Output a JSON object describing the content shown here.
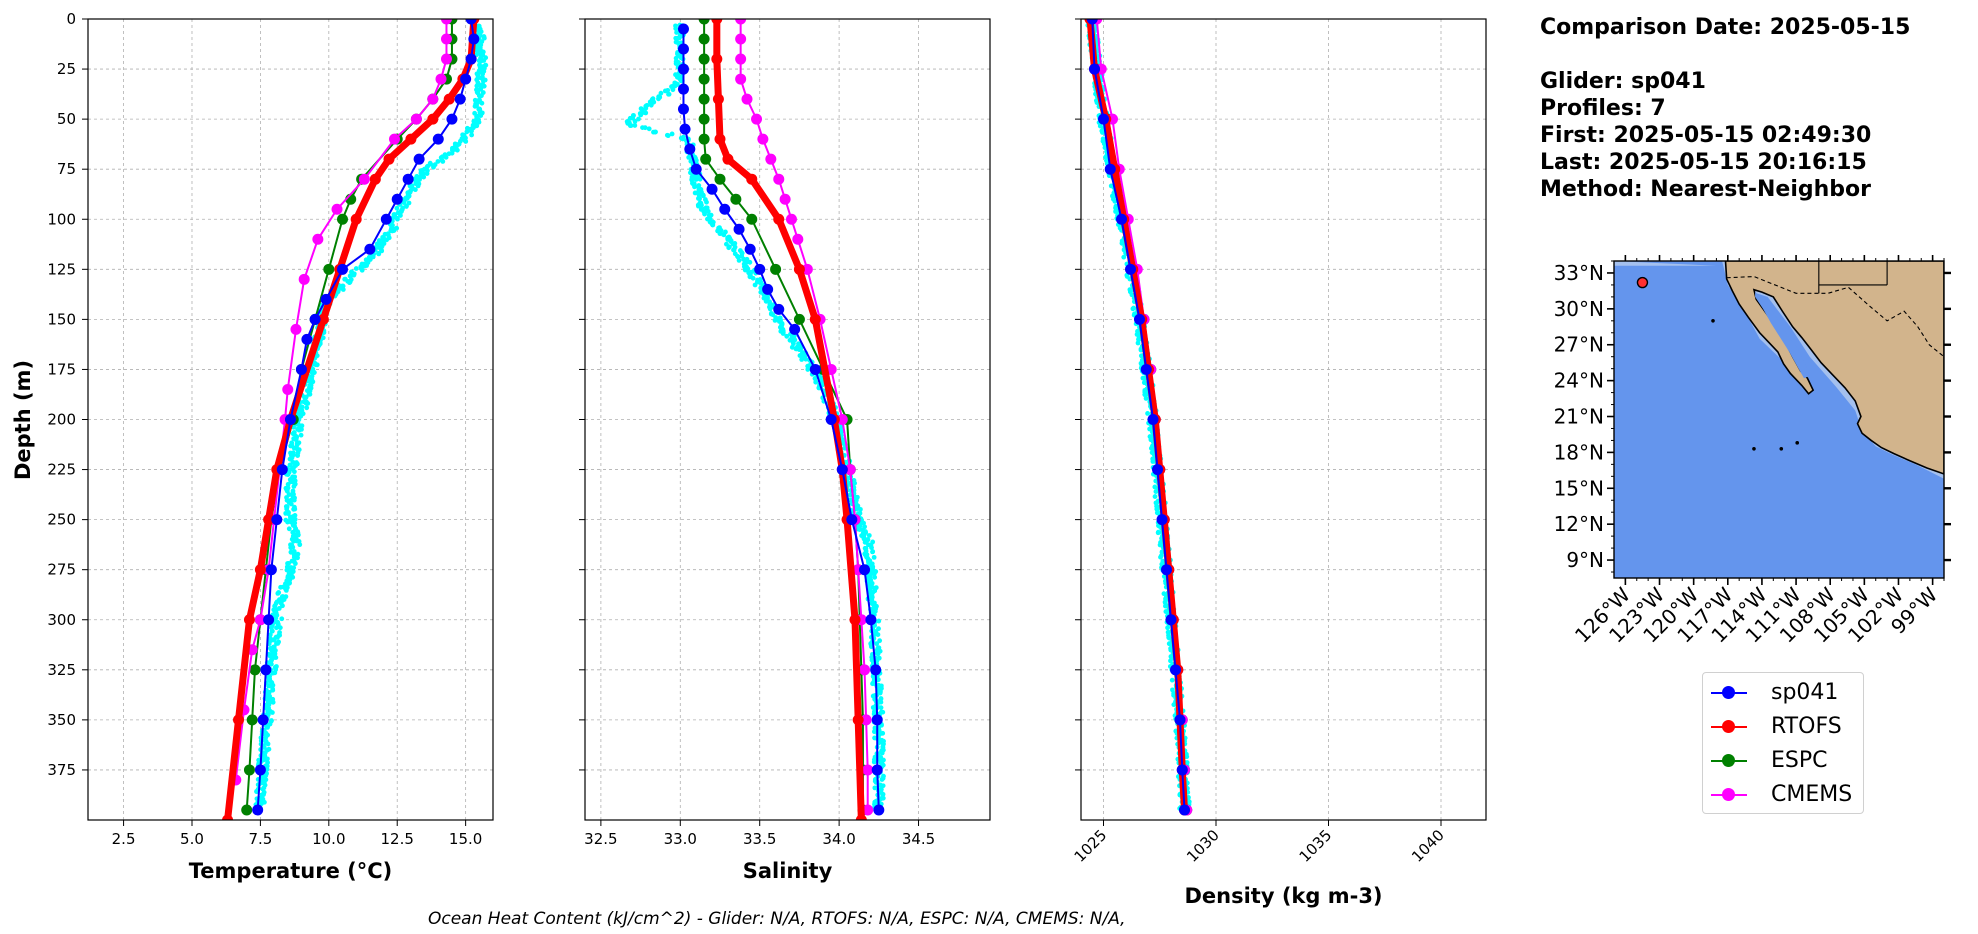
{
  "info": {
    "comparison_date": "Comparison Date: 2025-05-15",
    "glider": "Glider: sp041",
    "profiles": "Profiles: 7",
    "first": "First: 2025-05-15 02:49:30",
    "last": "Last: 2025-05-15 20:16:15",
    "method": "Method: Nearest-Neighbor"
  },
  "footer": "Ocean Heat Content (kJ/cm^2) - Glider: N/A,  RTOFS: N/A,  ESPC: N/A,  CMEMS: N/A,",
  "colors": {
    "sp041": "#0000ff",
    "RTOFS": "#ff0000",
    "ESPC": "#008000",
    "CMEMS": "#ff00ff",
    "raw": "#00ffff",
    "ocean": "#6495ed",
    "land": "#d2b48c",
    "shelf": "#a4c0ee"
  },
  "legend": [
    {
      "label": "sp041",
      "color": "#0000ff"
    },
    {
      "label": "RTOFS",
      "color": "#ff0000"
    },
    {
      "label": "ESPC",
      "color": "#008000"
    },
    {
      "label": "CMEMS",
      "color": "#ff00ff"
    }
  ],
  "map": {
    "lat_labels": [
      "33°N",
      "30°N",
      "27°N",
      "24°N",
      "21°N",
      "18°N",
      "15°N",
      "12°N",
      "9°N"
    ],
    "lon_labels": [
      "126°W",
      "123°W",
      "120°W",
      "117°W",
      "114°W",
      "111°W",
      "108°W",
      "105°W",
      "102°W",
      "99°W"
    ],
    "glider_position": {
      "lat": 32.2,
      "lon": -124.5
    },
    "lat_range": [
      7.5,
      34.0
    ],
    "lon_range": [
      -127.0,
      -98.0
    ]
  },
  "chart_data": [
    {
      "type": "line",
      "xlabel": "Temperature (°C)",
      "ylabel": "Depth (m)",
      "xlim": [
        1.2,
        16.0
      ],
      "ylim": [
        400,
        0
      ],
      "xticks": [
        "2.5",
        "5.0",
        "7.5",
        "10.0",
        "12.5",
        "15.0"
      ],
      "yticks": [
        "0",
        "25",
        "50",
        "75",
        "100",
        "125",
        "150",
        "175",
        "200",
        "225",
        "250",
        "275",
        "300",
        "325",
        "350",
        "375"
      ],
      "grid": true,
      "series": [
        {
          "name": "sp041",
          "depth": [
            0,
            10,
            20,
            30,
            40,
            50,
            60,
            70,
            80,
            90,
            100,
            115,
            125,
            140,
            150,
            160,
            175,
            200,
            225,
            250,
            275,
            300,
            325,
            350,
            375,
            395
          ],
          "values": [
            15.2,
            15.3,
            15.2,
            15.0,
            14.8,
            14.5,
            14.0,
            13.3,
            12.9,
            12.5,
            12.1,
            11.5,
            10.5,
            9.9,
            9.5,
            9.2,
            9.0,
            8.6,
            8.3,
            8.1,
            7.9,
            7.8,
            7.7,
            7.6,
            7.5,
            7.4
          ]
        },
        {
          "name": "RTOFS",
          "depth": [
            0,
            20,
            30,
            40,
            50,
            60,
            70,
            80,
            100,
            125,
            150,
            200,
            225,
            250,
            275,
            300,
            350,
            400
          ],
          "values": [
            15.3,
            15.2,
            14.9,
            14.4,
            13.8,
            13.0,
            12.2,
            11.7,
            11.0,
            10.4,
            9.8,
            8.6,
            8.1,
            7.8,
            7.5,
            7.1,
            6.7,
            6.3
          ]
        },
        {
          "name": "ESPC",
          "depth": [
            0,
            10,
            20,
            30,
            40,
            50,
            60,
            80,
            90,
            100,
            125,
            150,
            175,
            200,
            225,
            250,
            275,
            300,
            325,
            350,
            375,
            395
          ],
          "values": [
            14.5,
            14.5,
            14.5,
            14.3,
            13.8,
            13.2,
            12.5,
            11.2,
            10.8,
            10.5,
            10.0,
            9.5,
            9.0,
            8.7,
            8.2,
            7.9,
            7.7,
            7.5,
            7.3,
            7.2,
            7.1,
            7.0
          ]
        },
        {
          "name": "CMEMS",
          "depth": [
            0,
            10,
            20,
            30,
            40,
            50,
            60,
            80,
            95,
            110,
            130,
            155,
            185,
            200,
            225,
            250,
            275,
            300,
            315,
            345,
            380
          ],
          "values": [
            14.3,
            14.3,
            14.3,
            14.1,
            13.8,
            13.2,
            12.4,
            11.3,
            10.3,
            9.6,
            9.1,
            8.8,
            8.5,
            8.4,
            8.2,
            8.0,
            7.8,
            7.5,
            7.2,
            6.9,
            6.6
          ]
        }
      ],
      "raw_profile": {
        "name": "sp041 raw",
        "depth": [
          5,
          25,
          45,
          55,
          65,
          75,
          90,
          105,
          120,
          140,
          160,
          180,
          200,
          230,
          250,
          260,
          275,
          290,
          310,
          340,
          370,
          390
        ],
        "values": [
          15.5,
          15.6,
          15.5,
          15.2,
          14.6,
          13.5,
          12.8,
          12.3,
          11.5,
          9.9,
          9.6,
          9.3,
          8.9,
          8.6,
          8.6,
          8.8,
          8.6,
          8.2,
          8.0,
          7.8,
          7.6,
          7.5
        ]
      }
    },
    {
      "type": "line",
      "xlabel": "Salinity",
      "xlim": [
        32.4,
        34.95
      ],
      "ylim": [
        400,
        0
      ],
      "xticks": [
        "32.5",
        "33.0",
        "33.5",
        "34.0",
        "34.5"
      ],
      "grid": true,
      "series": [
        {
          "name": "sp041",
          "depth": [
            5,
            15,
            25,
            35,
            45,
            55,
            65,
            75,
            85,
            95,
            105,
            115,
            125,
            135,
            145,
            155,
            175,
            200,
            225,
            250,
            275,
            300,
            325,
            350,
            375,
            395
          ],
          "values": [
            33.02,
            33.02,
            33.02,
            33.02,
            33.02,
            33.03,
            33.06,
            33.1,
            33.2,
            33.28,
            33.37,
            33.44,
            33.5,
            33.55,
            33.62,
            33.72,
            33.85,
            33.95,
            34.02,
            34.08,
            34.16,
            34.2,
            34.23,
            34.24,
            34.24,
            34.25
          ]
        },
        {
          "name": "RTOFS",
          "depth": [
            0,
            20,
            40,
            60,
            70,
            80,
            100,
            125,
            150,
            200,
            225,
            250,
            300,
            350,
            400
          ],
          "values": [
            33.23,
            33.23,
            33.24,
            33.25,
            33.3,
            33.45,
            33.62,
            33.75,
            33.85,
            33.97,
            34.02,
            34.05,
            34.1,
            34.12,
            34.14
          ]
        },
        {
          "name": "ESPC",
          "depth": [
            0,
            10,
            20,
            30,
            40,
            50,
            60,
            70,
            80,
            90,
            100,
            125,
            150,
            175,
            200,
            225,
            250,
            275,
            300,
            325,
            350,
            375,
            395
          ],
          "values": [
            33.15,
            33.15,
            33.15,
            33.15,
            33.15,
            33.15,
            33.15,
            33.16,
            33.25,
            33.35,
            33.45,
            33.6,
            33.75,
            33.9,
            34.05,
            34.07,
            34.1,
            34.12,
            34.13,
            34.14,
            34.15,
            34.15,
            34.15
          ]
        },
        {
          "name": "CMEMS",
          "depth": [
            0,
            10,
            20,
            30,
            40,
            50,
            60,
            70,
            80,
            90,
            100,
            110,
            125,
            150,
            175,
            200,
            225,
            250,
            275,
            300,
            325,
            350,
            375,
            395
          ],
          "values": [
            33.38,
            33.38,
            33.38,
            33.38,
            33.42,
            33.48,
            33.52,
            33.57,
            33.62,
            33.66,
            33.7,
            33.74,
            33.8,
            33.88,
            33.95,
            34.02,
            34.07,
            34.1,
            34.12,
            34.14,
            34.16,
            34.17,
            34.18,
            34.18
          ]
        }
      ],
      "raw_profile": {
        "name": "sp041 raw",
        "depth": [
          5,
          30,
          52,
          60,
          70,
          80,
          95,
          110,
          120,
          135,
          150,
          165,
          180,
          200,
          225,
          250,
          260,
          275,
          300,
          330,
          360,
          390
        ],
        "values": [
          33.0,
          33.0,
          32.67,
          33.05,
          33.08,
          33.1,
          33.15,
          33.3,
          33.4,
          33.52,
          33.62,
          33.75,
          33.88,
          33.98,
          34.05,
          34.12,
          34.18,
          34.2,
          34.22,
          34.24,
          34.25,
          34.25
        ]
      }
    },
    {
      "type": "line",
      "xlabel": "Density (kg m-3)",
      "xlim": [
        1024.0,
        1042.0
      ],
      "ylim": [
        400,
        0
      ],
      "xticks": [
        "1025",
        "1030",
        "1035",
        "1040"
      ],
      "grid": true,
      "series": [
        {
          "name": "sp041",
          "depth": [
            0,
            25,
            50,
            75,
            100,
            125,
            150,
            175,
            200,
            225,
            250,
            275,
            300,
            325,
            350,
            375,
            395
          ],
          "values": [
            1024.5,
            1024.6,
            1025.0,
            1025.3,
            1025.8,
            1026.2,
            1026.6,
            1026.9,
            1027.2,
            1027.4,
            1027.6,
            1027.8,
            1028.0,
            1028.2,
            1028.4,
            1028.5,
            1028.6
          ]
        },
        {
          "name": "RTOFS",
          "depth": [
            0,
            25,
            50,
            75,
            100,
            125,
            150,
            175,
            200,
            225,
            250,
            275,
            300,
            325,
            350,
            375,
            395
          ],
          "values": [
            1024.4,
            1024.6,
            1025.1,
            1025.5,
            1025.9,
            1026.3,
            1026.7,
            1027.0,
            1027.3,
            1027.5,
            1027.7,
            1027.9,
            1028.1,
            1028.3,
            1028.4,
            1028.5,
            1028.6
          ]
        },
        {
          "name": "ESPC",
          "depth": [
            0,
            25,
            50,
            75,
            100,
            125,
            150,
            175,
            200,
            225,
            250,
            275,
            300,
            325,
            350,
            375,
            395
          ],
          "values": [
            1024.5,
            1024.7,
            1025.2,
            1025.6,
            1026.0,
            1026.4,
            1026.8,
            1027.1,
            1027.3,
            1027.5,
            1027.7,
            1027.9,
            1028.1,
            1028.3,
            1028.5,
            1028.6,
            1028.7
          ]
        },
        {
          "name": "CMEMS",
          "depth": [
            0,
            25,
            50,
            75,
            100,
            125,
            150,
            175,
            200,
            225,
            250,
            275,
            300,
            325,
            350,
            375,
            395
          ],
          "values": [
            1024.7,
            1024.9,
            1025.4,
            1025.7,
            1026.1,
            1026.5,
            1026.8,
            1027.1,
            1027.3,
            1027.5,
            1027.7,
            1027.9,
            1028.1,
            1028.3,
            1028.5,
            1028.6,
            1028.7
          ]
        }
      ],
      "raw_profile": {
        "name": "sp041 raw",
        "depth": [
          5,
          50,
          100,
          150,
          200,
          250,
          300,
          350,
          390
        ],
        "values": [
          1024.5,
          1025.0,
          1025.8,
          1026.6,
          1027.2,
          1027.6,
          1028.0,
          1028.4,
          1028.6
        ]
      }
    }
  ]
}
